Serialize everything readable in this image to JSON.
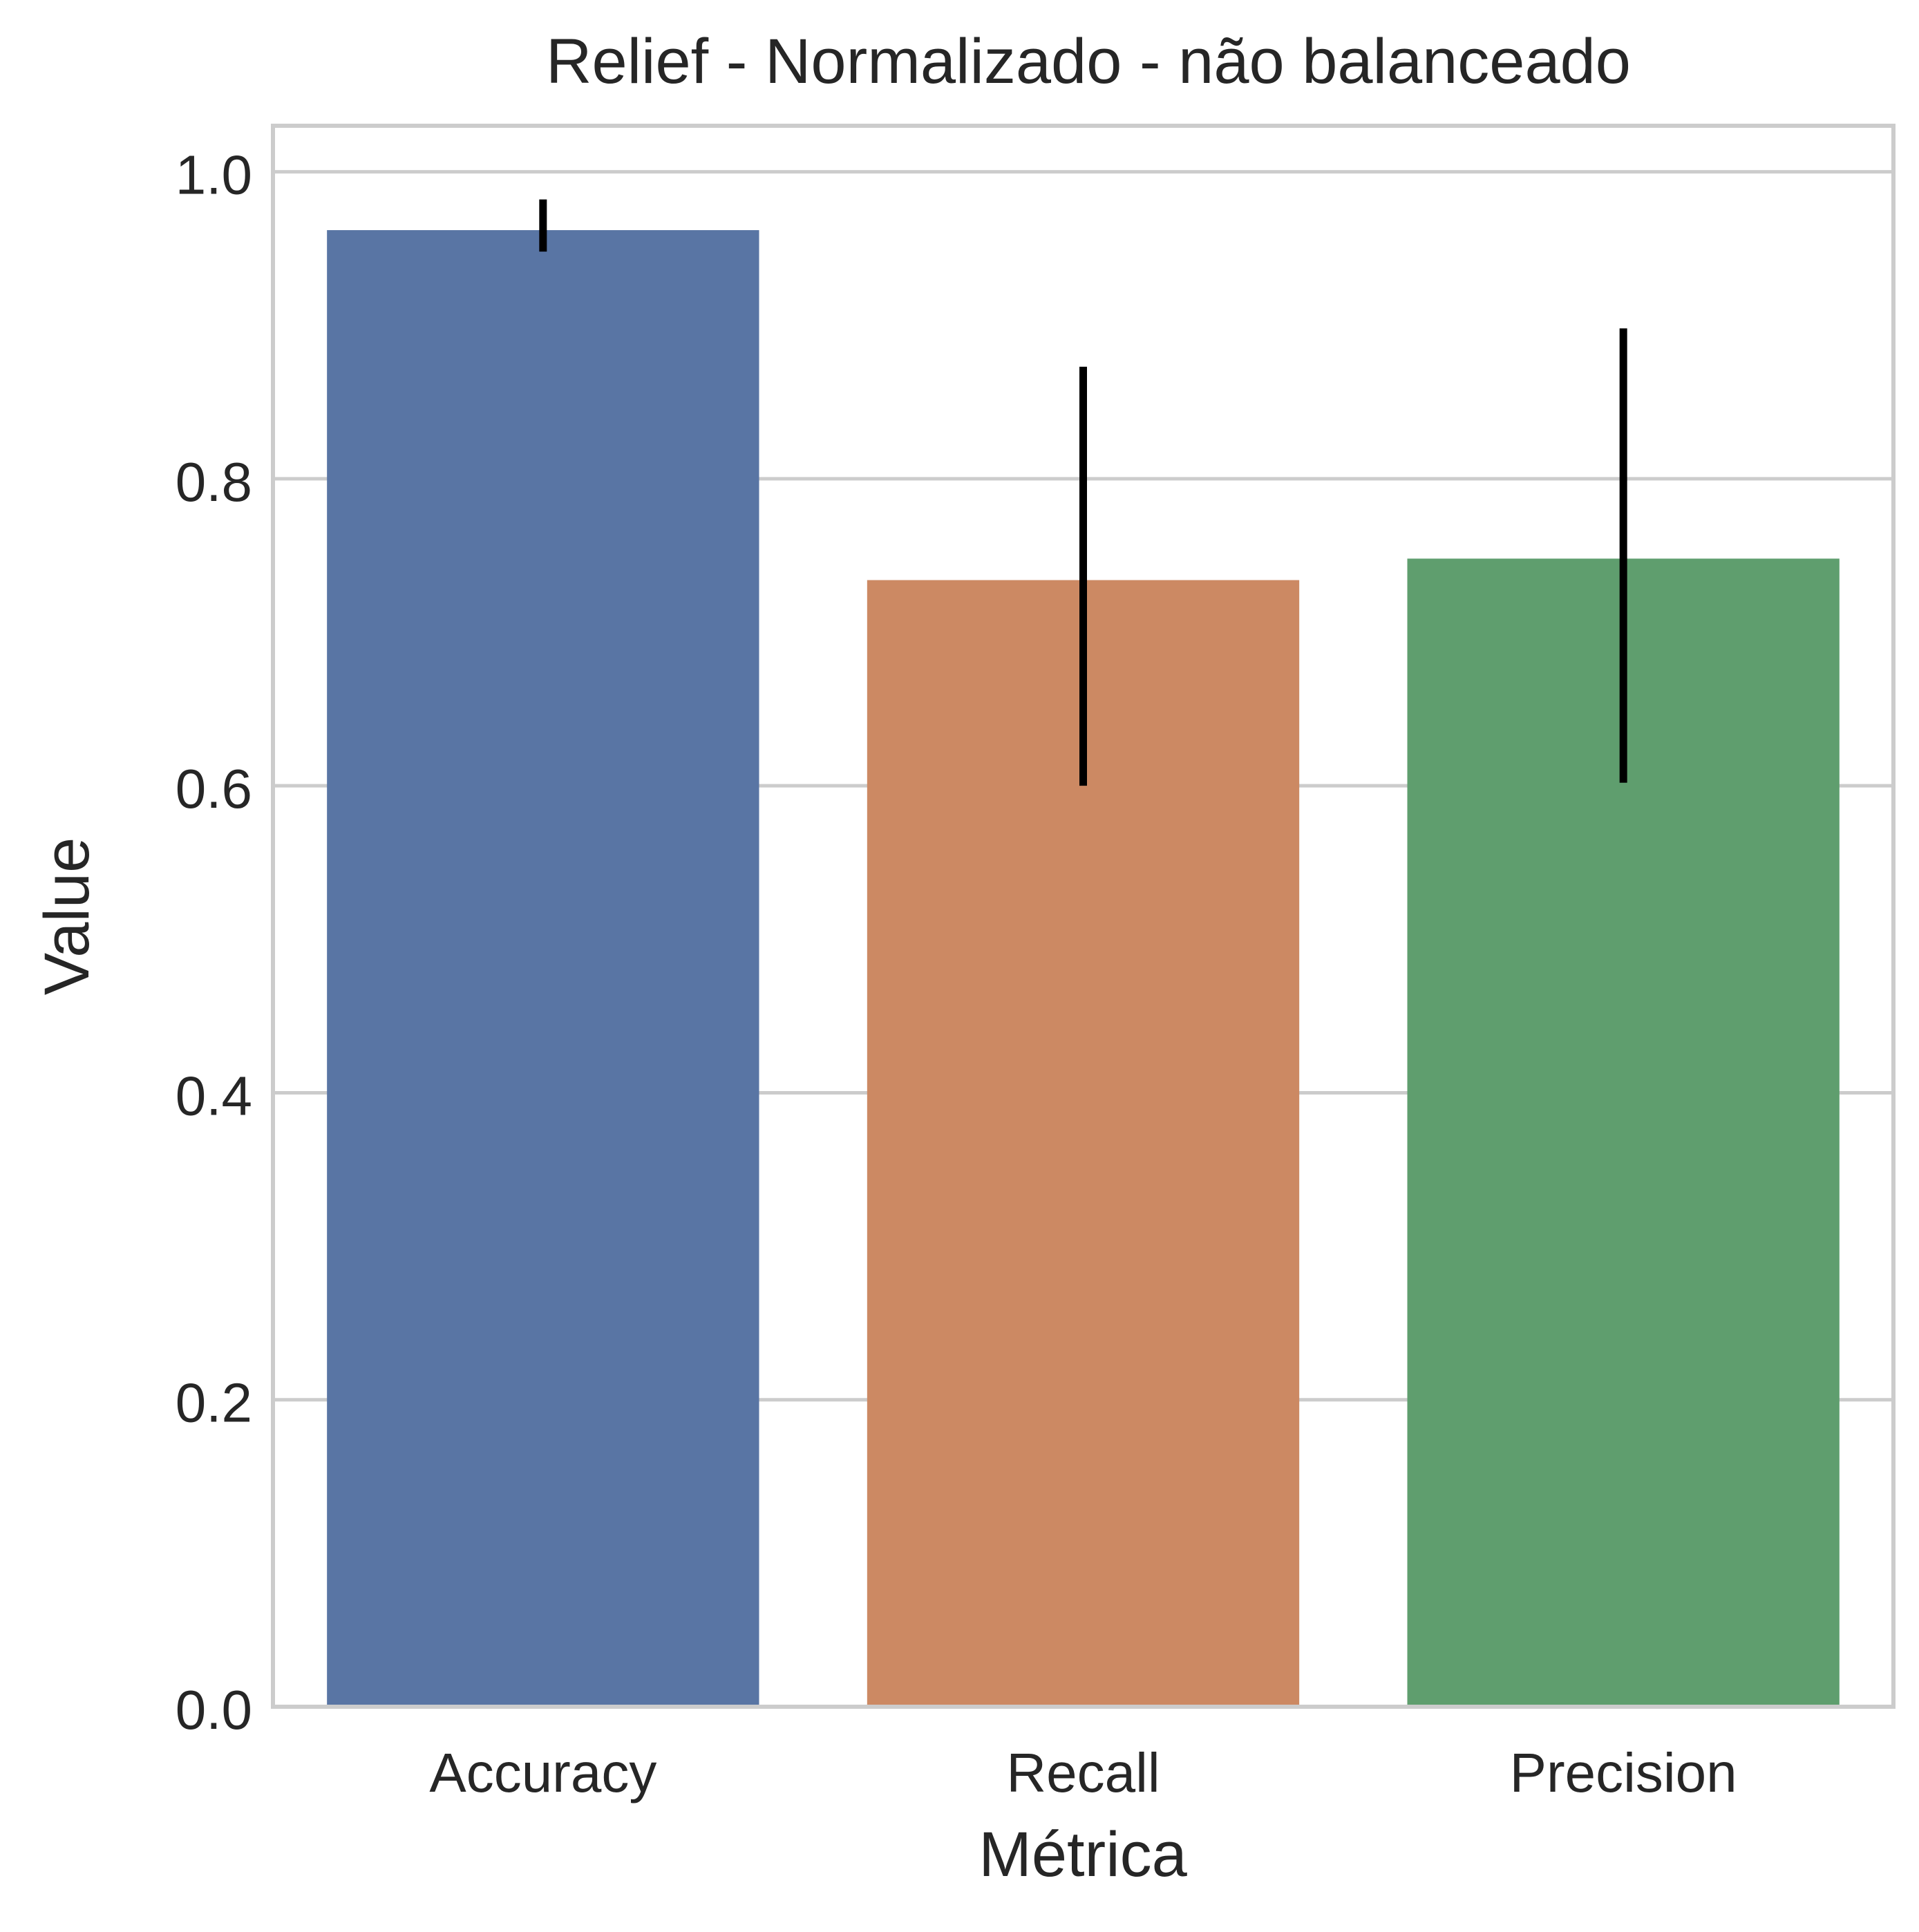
{
  "chart_data": {
    "type": "bar",
    "title": "Relief - Normalizado - não balanceado",
    "xlabel": "Métrica",
    "ylabel": "Value",
    "categories": [
      "Accuracy",
      "Recall",
      "Precision"
    ],
    "values": [
      0.962,
      0.734,
      0.748
    ],
    "error_bars": [
      {
        "low": 0.948,
        "high": 0.982
      },
      {
        "low": 0.6,
        "high": 0.873
      },
      {
        "low": 0.602,
        "high": 0.898
      }
    ],
    "colors": [
      "#5975a4",
      "#cc8963",
      "#5f9e6e"
    ],
    "error_bar_color": "#000000",
    "ylim": [
      0,
      1.03
    ],
    "yticks": [
      0.0,
      0.2,
      0.4,
      0.6,
      0.8,
      1.0
    ],
    "ytick_labels": [
      "0.0",
      "0.2",
      "0.4",
      "0.6",
      "0.8",
      "1.0"
    ],
    "grid": true,
    "grid_axis": "y",
    "grid_color": "#cccccc",
    "frame_color": "#cccccc",
    "legend": "none"
  }
}
